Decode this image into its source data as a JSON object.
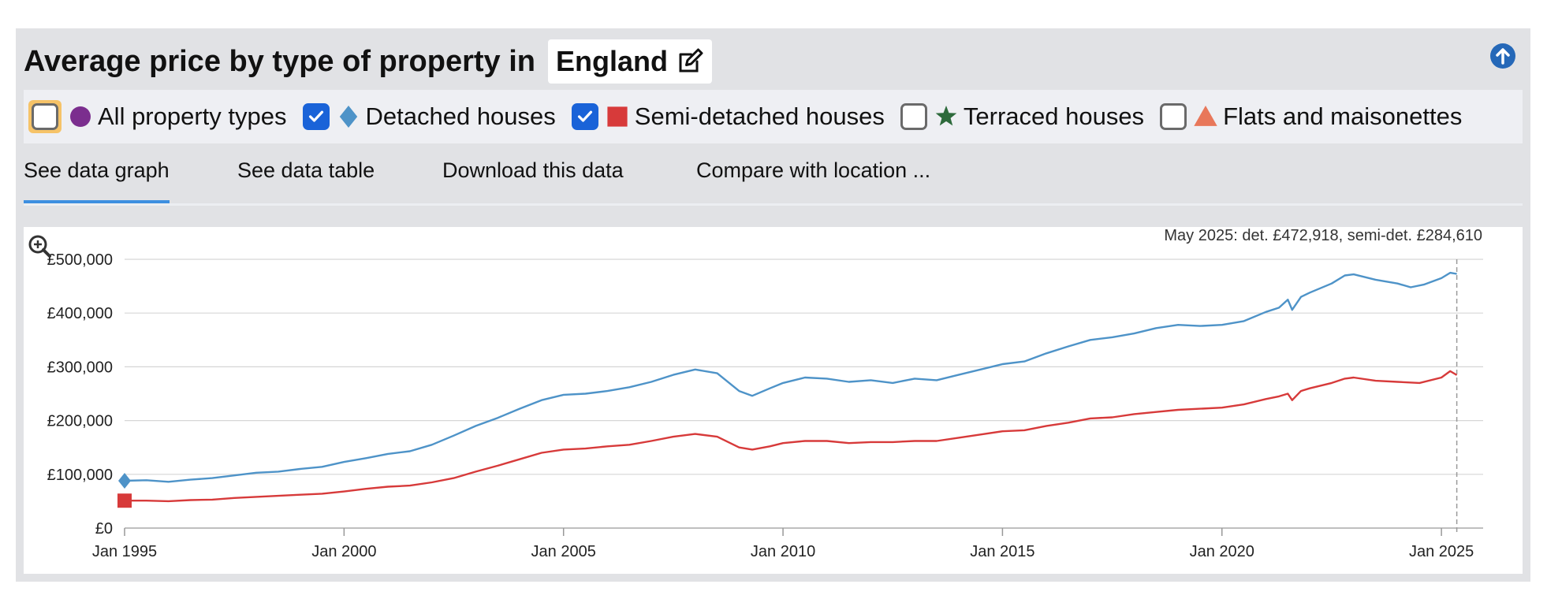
{
  "header": {
    "title": "Average price by type of property in",
    "location": "England"
  },
  "filters": [
    {
      "label": "All property types",
      "checked": false,
      "color": "#7b2e8e",
      "symbol": "circle",
      "focused": true
    },
    {
      "label": "Detached houses",
      "checked": true,
      "color": "#4e93c8",
      "symbol": "diamond",
      "focused": false
    },
    {
      "label": "Semi-detached houses",
      "checked": true,
      "color": "#d73a3a",
      "symbol": "square",
      "focused": false
    },
    {
      "label": "Terraced houses",
      "checked": false,
      "color": "#2d6a3b",
      "symbol": "star",
      "focused": false
    },
    {
      "label": "Flats and maisonettes",
      "checked": false,
      "color": "#e8775a",
      "symbol": "triangle",
      "focused": false
    }
  ],
  "tabs": [
    {
      "label": "See data graph",
      "active": true
    },
    {
      "label": "See data table",
      "active": false
    },
    {
      "label": "Download this data",
      "active": false
    },
    {
      "label": "Compare with location ...",
      "active": false
    }
  ],
  "icons": [
    "edit-icon",
    "arrow-up-circle-icon",
    "zoom-in-icon"
  ],
  "chart_data": {
    "type": "line",
    "tooltip": "May 2025: det. £472,918, semi-det. £284,610",
    "x_ticks": [
      "Jan 1995",
      "Jan 2000",
      "Jan 2005",
      "Jan 2010",
      "Jan 2015",
      "Jan 2020",
      "Jan 2025"
    ],
    "y_ticks": [
      "£0",
      "£100,000",
      "£200,000",
      "£300,000",
      "£400,000",
      "£500,000"
    ],
    "xlim": [
      1995.0,
      2025.95
    ],
    "ylim": [
      0,
      500000
    ],
    "grid": true,
    "series": [
      {
        "name": "Detached houses",
        "color": "#4e93c8",
        "points": [
          [
            1995.0,
            88000
          ],
          [
            1995.5,
            89000
          ],
          [
            1996.0,
            86000
          ],
          [
            1996.5,
            90000
          ],
          [
            1997.0,
            93000
          ],
          [
            1997.5,
            98000
          ],
          [
            1998.0,
            103000
          ],
          [
            1998.5,
            105000
          ],
          [
            1999.0,
            110000
          ],
          [
            1999.5,
            114000
          ],
          [
            2000.0,
            123000
          ],
          [
            2000.5,
            130000
          ],
          [
            2001.0,
            138000
          ],
          [
            2001.5,
            143000
          ],
          [
            2002.0,
            155000
          ],
          [
            2002.5,
            172000
          ],
          [
            2003.0,
            190000
          ],
          [
            2003.5,
            205000
          ],
          [
            2004.0,
            222000
          ],
          [
            2004.5,
            238000
          ],
          [
            2005.0,
            248000
          ],
          [
            2005.5,
            250000
          ],
          [
            2006.0,
            255000
          ],
          [
            2006.5,
            262000
          ],
          [
            2007.0,
            272000
          ],
          [
            2007.5,
            285000
          ],
          [
            2008.0,
            295000
          ],
          [
            2008.5,
            288000
          ],
          [
            2009.0,
            255000
          ],
          [
            2009.3,
            246000
          ],
          [
            2009.7,
            260000
          ],
          [
            2010.0,
            270000
          ],
          [
            2010.5,
            280000
          ],
          [
            2011.0,
            278000
          ],
          [
            2011.5,
            272000
          ],
          [
            2012.0,
            275000
          ],
          [
            2012.5,
            270000
          ],
          [
            2013.0,
            278000
          ],
          [
            2013.5,
            275000
          ],
          [
            2014.0,
            285000
          ],
          [
            2014.5,
            295000
          ],
          [
            2015.0,
            305000
          ],
          [
            2015.5,
            310000
          ],
          [
            2016.0,
            325000
          ],
          [
            2016.5,
            338000
          ],
          [
            2017.0,
            350000
          ],
          [
            2017.5,
            355000
          ],
          [
            2018.0,
            362000
          ],
          [
            2018.5,
            372000
          ],
          [
            2019.0,
            378000
          ],
          [
            2019.5,
            376000
          ],
          [
            2020.0,
            378000
          ],
          [
            2020.5,
            385000
          ],
          [
            2021.0,
            402000
          ],
          [
            2021.3,
            410000
          ],
          [
            2021.5,
            425000
          ],
          [
            2021.6,
            406000
          ],
          [
            2021.8,
            430000
          ],
          [
            2022.0,
            438000
          ],
          [
            2022.5,
            455000
          ],
          [
            2022.8,
            470000
          ],
          [
            2023.0,
            472000
          ],
          [
            2023.5,
            462000
          ],
          [
            2024.0,
            455000
          ],
          [
            2024.3,
            448000
          ],
          [
            2024.6,
            453000
          ],
          [
            2025.0,
            465000
          ],
          [
            2025.2,
            475000
          ],
          [
            2025.35,
            472918
          ]
        ]
      },
      {
        "name": "Semi-detached houses",
        "color": "#d73a3a",
        "points": [
          [
            1995.0,
            51000
          ],
          [
            1995.5,
            51000
          ],
          [
            1996.0,
            50000
          ],
          [
            1996.5,
            52000
          ],
          [
            1997.0,
            53000
          ],
          [
            1997.5,
            56000
          ],
          [
            1998.0,
            58000
          ],
          [
            1998.5,
            60000
          ],
          [
            1999.0,
            62000
          ],
          [
            1999.5,
            64000
          ],
          [
            2000.0,
            68000
          ],
          [
            2000.5,
            73000
          ],
          [
            2001.0,
            77000
          ],
          [
            2001.5,
            79000
          ],
          [
            2002.0,
            85000
          ],
          [
            2002.5,
            93000
          ],
          [
            2003.0,
            105000
          ],
          [
            2003.5,
            116000
          ],
          [
            2004.0,
            128000
          ],
          [
            2004.5,
            140000
          ],
          [
            2005.0,
            146000
          ],
          [
            2005.5,
            148000
          ],
          [
            2006.0,
            152000
          ],
          [
            2006.5,
            155000
          ],
          [
            2007.0,
            162000
          ],
          [
            2007.5,
            170000
          ],
          [
            2008.0,
            175000
          ],
          [
            2008.5,
            170000
          ],
          [
            2009.0,
            150000
          ],
          [
            2009.3,
            146000
          ],
          [
            2009.7,
            152000
          ],
          [
            2010.0,
            158000
          ],
          [
            2010.5,
            162000
          ],
          [
            2011.0,
            162000
          ],
          [
            2011.5,
            158000
          ],
          [
            2012.0,
            160000
          ],
          [
            2012.5,
            160000
          ],
          [
            2013.0,
            162000
          ],
          [
            2013.5,
            162000
          ],
          [
            2014.0,
            168000
          ],
          [
            2014.5,
            174000
          ],
          [
            2015.0,
            180000
          ],
          [
            2015.5,
            182000
          ],
          [
            2016.0,
            190000
          ],
          [
            2016.5,
            196000
          ],
          [
            2017.0,
            204000
          ],
          [
            2017.5,
            206000
          ],
          [
            2018.0,
            212000
          ],
          [
            2018.5,
            216000
          ],
          [
            2019.0,
            220000
          ],
          [
            2019.5,
            222000
          ],
          [
            2020.0,
            224000
          ],
          [
            2020.5,
            230000
          ],
          [
            2021.0,
            240000
          ],
          [
            2021.3,
            245000
          ],
          [
            2021.5,
            250000
          ],
          [
            2021.6,
            238000
          ],
          [
            2021.8,
            255000
          ],
          [
            2022.0,
            260000
          ],
          [
            2022.5,
            270000
          ],
          [
            2022.8,
            278000
          ],
          [
            2023.0,
            280000
          ],
          [
            2023.5,
            274000
          ],
          [
            2024.0,
            272000
          ],
          [
            2024.5,
            270000
          ],
          [
            2025.0,
            280000
          ],
          [
            2025.2,
            292000
          ],
          [
            2025.35,
            284610
          ]
        ]
      }
    ]
  }
}
